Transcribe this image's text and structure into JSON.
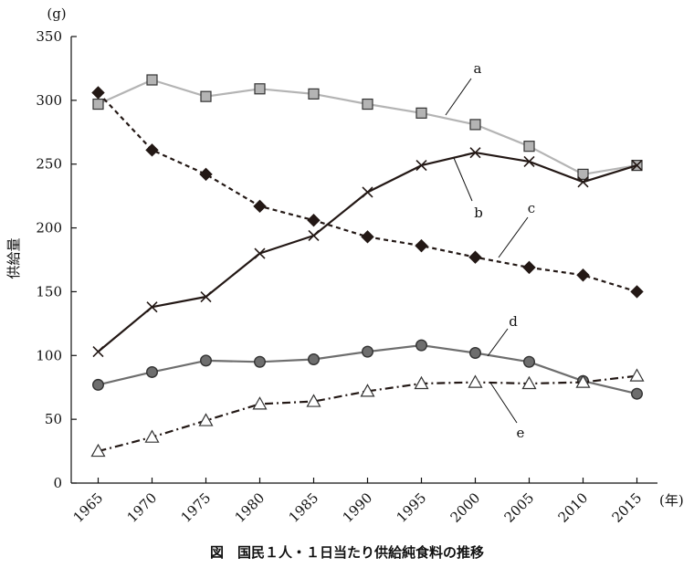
{
  "chart_data": {
    "type": "line",
    "title": "図　国民１人・１日当たり供給純食料の推移",
    "ylabel": "供給量",
    "yunit": "(g)",
    "xunit": "(年)",
    "ylim": [
      0,
      350
    ],
    "yticks": [
      "0",
      "50",
      "100",
      "150",
      "200",
      "250",
      "300",
      "350"
    ],
    "x": [
      "1965",
      "1970",
      "1975",
      "1980",
      "1985",
      "1990",
      "1995",
      "2000",
      "2005",
      "2010",
      "2015"
    ],
    "grid": false,
    "legend": "labels on lines",
    "series": [
      {
        "name": "a",
        "marker": "square",
        "line": "solid",
        "color": "#b4b4b4",
        "markerFill": "#b4b4b4",
        "values": [
          297,
          316,
          303,
          309,
          305,
          297,
          290,
          281,
          264,
          242,
          249
        ]
      },
      {
        "name": "b",
        "marker": "x",
        "line": "solid",
        "color": "#231815",
        "markerFill": "none",
        "values": [
          103,
          138,
          146,
          180,
          194,
          228,
          249,
          259,
          252,
          236,
          249
        ]
      },
      {
        "name": "c",
        "marker": "diamond",
        "line": "dashed",
        "color": "#231815",
        "markerFill": "#231815",
        "values": [
          306,
          261,
          242,
          217,
          206,
          193,
          186,
          177,
          169,
          163,
          150
        ]
      },
      {
        "name": "d",
        "marker": "circle",
        "line": "solid",
        "color": "#6e6e6e",
        "markerFill": "#6e6e6e",
        "values": [
          77,
          87,
          96,
          95,
          97,
          103,
          108,
          102,
          95,
          80,
          70
        ]
      },
      {
        "name": "e",
        "marker": "triangle",
        "line": "dashdot",
        "color": "#231815",
        "markerFill": "#ffffff",
        "values": [
          25,
          36,
          49,
          62,
          64,
          72,
          78,
          79,
          78,
          79,
          84
        ]
      }
    ]
  }
}
